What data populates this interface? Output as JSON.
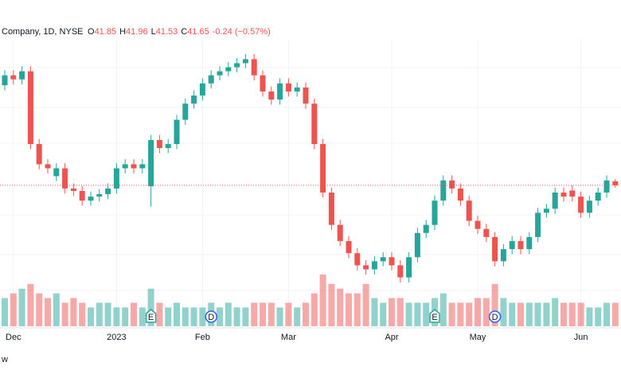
{
  "chart_data": {
    "type": "candlestick",
    "title": "Company, 1D, NYSE",
    "ohlc_legend": [
      {
        "label": "O",
        "value": 41.85
      },
      {
        "label": "H",
        "value": 41.96
      },
      {
        "label": "L",
        "value": 41.53
      },
      {
        "label": "C",
        "value": 41.65
      }
    ],
    "change": "-0.24 (−0.57%)",
    "up_color": "#26a69a",
    "down_color": "#ef5350",
    "open": [
      46.6,
      47.09,
      46.89,
      47.29,
      43.69,
      42.69,
      42.1,
      42.49,
      41.49,
      41.37,
      40.89,
      41.09,
      41.21,
      41.49,
      42.49,
      42.69,
      42.49,
      41.6,
      43.89,
      43.49,
      43.69,
      44.89,
      45.69,
      46.09,
      46.69,
      47.09,
      47.29,
      47.49,
      47.69,
      47.89,
      47.09,
      46.29,
      45.89,
      46.69,
      46.29,
      46.49,
      45.69,
      43.69,
      41.29,
      39.69,
      38.89,
      38.29,
      37.69,
      37.49,
      37.89,
      38.09,
      37.69,
      37.09,
      38.09,
      39.29,
      39.69,
      40.89,
      41.89,
      41.49,
      40.89,
      39.89,
      39.49,
      39.09,
      37.89,
      38.49,
      38.89,
      38.49,
      39.09,
      40.29,
      40.49,
      41.29,
      41.39,
      41.09,
      40.29,
      40.89,
      41.29,
      41.85
    ],
    "high": [
      47.34,
      47.34,
      47.54,
      47.54,
      43.94,
      42.94,
      42.74,
      42.74,
      41.74,
      41.62,
      41.34,
      41.46,
      41.74,
      42.74,
      42.94,
      42.94,
      42.94,
      44.14,
      44.14,
      43.94,
      45.14,
      45.94,
      46.34,
      46.94,
      47.34,
      47.54,
      47.74,
      47.94,
      48.14,
      48.14,
      47.34,
      46.54,
      46.94,
      46.94,
      46.74,
      46.74,
      45.94,
      43.94,
      41.54,
      39.94,
      39.14,
      38.54,
      37.94,
      38.14,
      38.34,
      38.34,
      37.94,
      38.34,
      39.54,
      39.94,
      41.14,
      42.14,
      42.14,
      41.74,
      41.14,
      40.14,
      39.74,
      39.34,
      38.74,
      39.14,
      39.14,
      39.34,
      40.54,
      40.74,
      41.54,
      41.54,
      41.64,
      41.34,
      41.14,
      41.54,
      42.14,
      41.96
    ],
    "low": [
      46.35,
      46.64,
      46.64,
      43.44,
      42.44,
      42.24,
      41.85,
      41.24,
      41.12,
      40.64,
      40.64,
      40.84,
      40.96,
      41.24,
      42.24,
      42.24,
      42.24,
      40.6,
      43.24,
      43.24,
      43.44,
      44.64,
      45.44,
      45.84,
      46.44,
      46.84,
      47.04,
      47.24,
      47.44,
      46.84,
      46.04,
      45.64,
      45.64,
      46.04,
      46.04,
      45.44,
      43.44,
      41.04,
      39.44,
      38.64,
      38.04,
      37.44,
      37.24,
      37.24,
      37.64,
      37.44,
      36.84,
      36.84,
      37.84,
      39.04,
      39.44,
      40.64,
      41.24,
      40.64,
      39.64,
      39.24,
      38.84,
      37.64,
      37.64,
      38.24,
      38.24,
      38.24,
      38.84,
      40.04,
      40.24,
      40.84,
      40.84,
      40.04,
      40.04,
      40.64,
      41.04,
      41.53
    ],
    "close": [
      47.09,
      46.89,
      47.29,
      43.69,
      42.69,
      42.49,
      42.49,
      41.49,
      41.37,
      40.89,
      41.09,
      41.21,
      41.49,
      42.49,
      42.69,
      42.49,
      42.69,
      43.89,
      43.49,
      43.69,
      44.89,
      45.69,
      46.09,
      46.69,
      47.09,
      47.29,
      47.49,
      47.69,
      47.89,
      47.09,
      46.29,
      45.89,
      46.69,
      46.29,
      46.49,
      45.69,
      43.69,
      41.29,
      39.69,
      38.89,
      38.29,
      37.69,
      37.49,
      37.89,
      38.09,
      37.69,
      37.09,
      38.09,
      39.29,
      39.69,
      40.89,
      41.89,
      41.49,
      40.89,
      39.89,
      39.49,
      39.09,
      37.89,
      38.49,
      38.89,
      38.49,
      39.09,
      40.29,
      40.49,
      41.29,
      41.09,
      41.09,
      40.29,
      40.89,
      41.29,
      41.89,
      41.65
    ],
    "volume": [
      6,
      7,
      8,
      9,
      7,
      6,
      7,
      5,
      6,
      5,
      4,
      5,
      5,
      4,
      4,
      5,
      4,
      8,
      5,
      4,
      5,
      4,
      4,
      4,
      5,
      4,
      5,
      4,
      4,
      5,
      5,
      5,
      4,
      5,
      4,
      5,
      7,
      11,
      9,
      8,
      7,
      7,
      9,
      6,
      5,
      6,
      6,
      5,
      5,
      5,
      6,
      7,
      5,
      5,
      5,
      6,
      6,
      9,
      6,
      5,
      5,
      5,
      5,
      5,
      6,
      5,
      5,
      5,
      4,
      4,
      5,
      5
    ],
    "xticks": [
      {
        "value": 1,
        "label": "Dec"
      },
      {
        "value": 13,
        "label": "2023"
      },
      {
        "value": 23,
        "label": "Feb"
      },
      {
        "value": 33,
        "label": "Mar"
      },
      {
        "value": 45,
        "label": "Apr"
      },
      {
        "value": 55,
        "label": "May"
      },
      {
        "value": 67,
        "label": "Jun"
      }
    ],
    "events": [
      {
        "label": "E",
        "index": 17,
        "color": "#26a69a"
      },
      {
        "label": "D",
        "index": 24,
        "color": "#2962ff"
      },
      {
        "label": "E",
        "index": 50,
        "color": "#26a69a"
      },
      {
        "label": "D",
        "index": 57,
        "color": "#2962ff"
      }
    ]
  },
  "footer": "w"
}
